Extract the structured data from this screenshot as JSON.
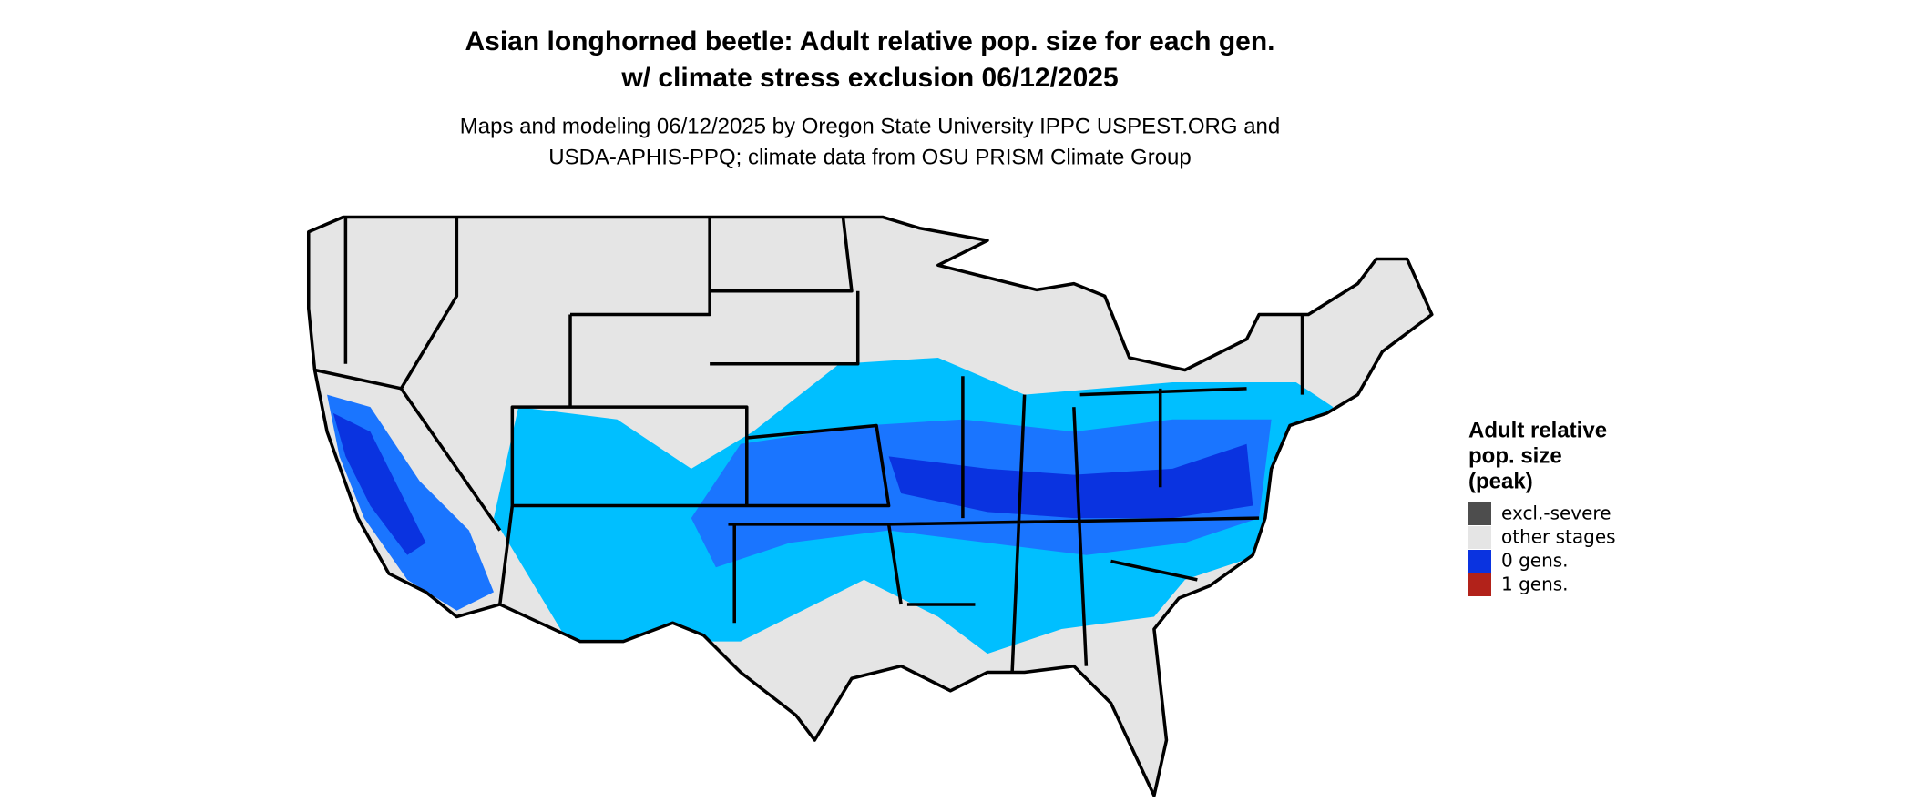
{
  "title": [
    "Asian longhorned beetle: Adult relative pop. size for each gen.",
    "w/ climate stress exclusion 06/12/2025"
  ],
  "subtitle": [
    "Maps and modeling 06/12/2025 by Oregon State University IPPC USPEST.ORG and",
    "USDA-APHIS-PPQ; climate data from OSU PRISM Climate Group"
  ],
  "legend": {
    "title": [
      "Adult relative",
      "pop. size",
      "(peak)"
    ],
    "items": [
      {
        "label": "excl.-severe",
        "color": "#4d4d4d"
      },
      {
        "label": "other stages",
        "color": "#e5e5e5"
      },
      {
        "label": "0 gens.",
        "color": "#0a33e0"
      },
      {
        "label": "1 gens.",
        "color": "#b2221a"
      }
    ]
  }
}
